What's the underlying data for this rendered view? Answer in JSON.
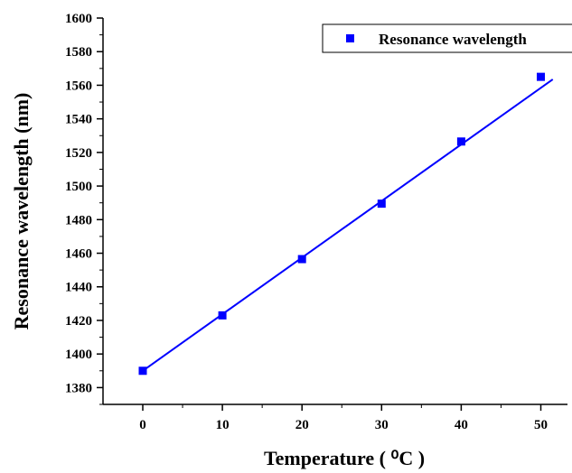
{
  "chart_data": {
    "type": "scatter",
    "xlabel": "Temperature ( ⁰C )",
    "ylabel": "Resonance wavelength (nm)",
    "xlim": [
      -5,
      53
    ],
    "ylim": [
      1370,
      1600
    ],
    "x_ticks": [
      0,
      10,
      20,
      30,
      40,
      50
    ],
    "y_ticks": [
      1380,
      1400,
      1420,
      1440,
      1460,
      1480,
      1500,
      1520,
      1540,
      1560,
      1580,
      1600
    ],
    "legend": {
      "label": "Resonance wavelength",
      "placement": "top-right"
    },
    "grid": false,
    "series": [
      {
        "name": "Resonance wavelength",
        "color": "#0000ff",
        "marker": "square",
        "x": [
          0,
          10,
          20,
          30,
          40,
          50
        ],
        "y": [
          1390,
          1423,
          1456.5,
          1489.5,
          1526.5,
          1565
        ]
      }
    ],
    "fit_line": {
      "color": "#0000ff",
      "x": [
        0,
        51.5
      ],
      "y": [
        1390,
        1563.5
      ]
    }
  }
}
